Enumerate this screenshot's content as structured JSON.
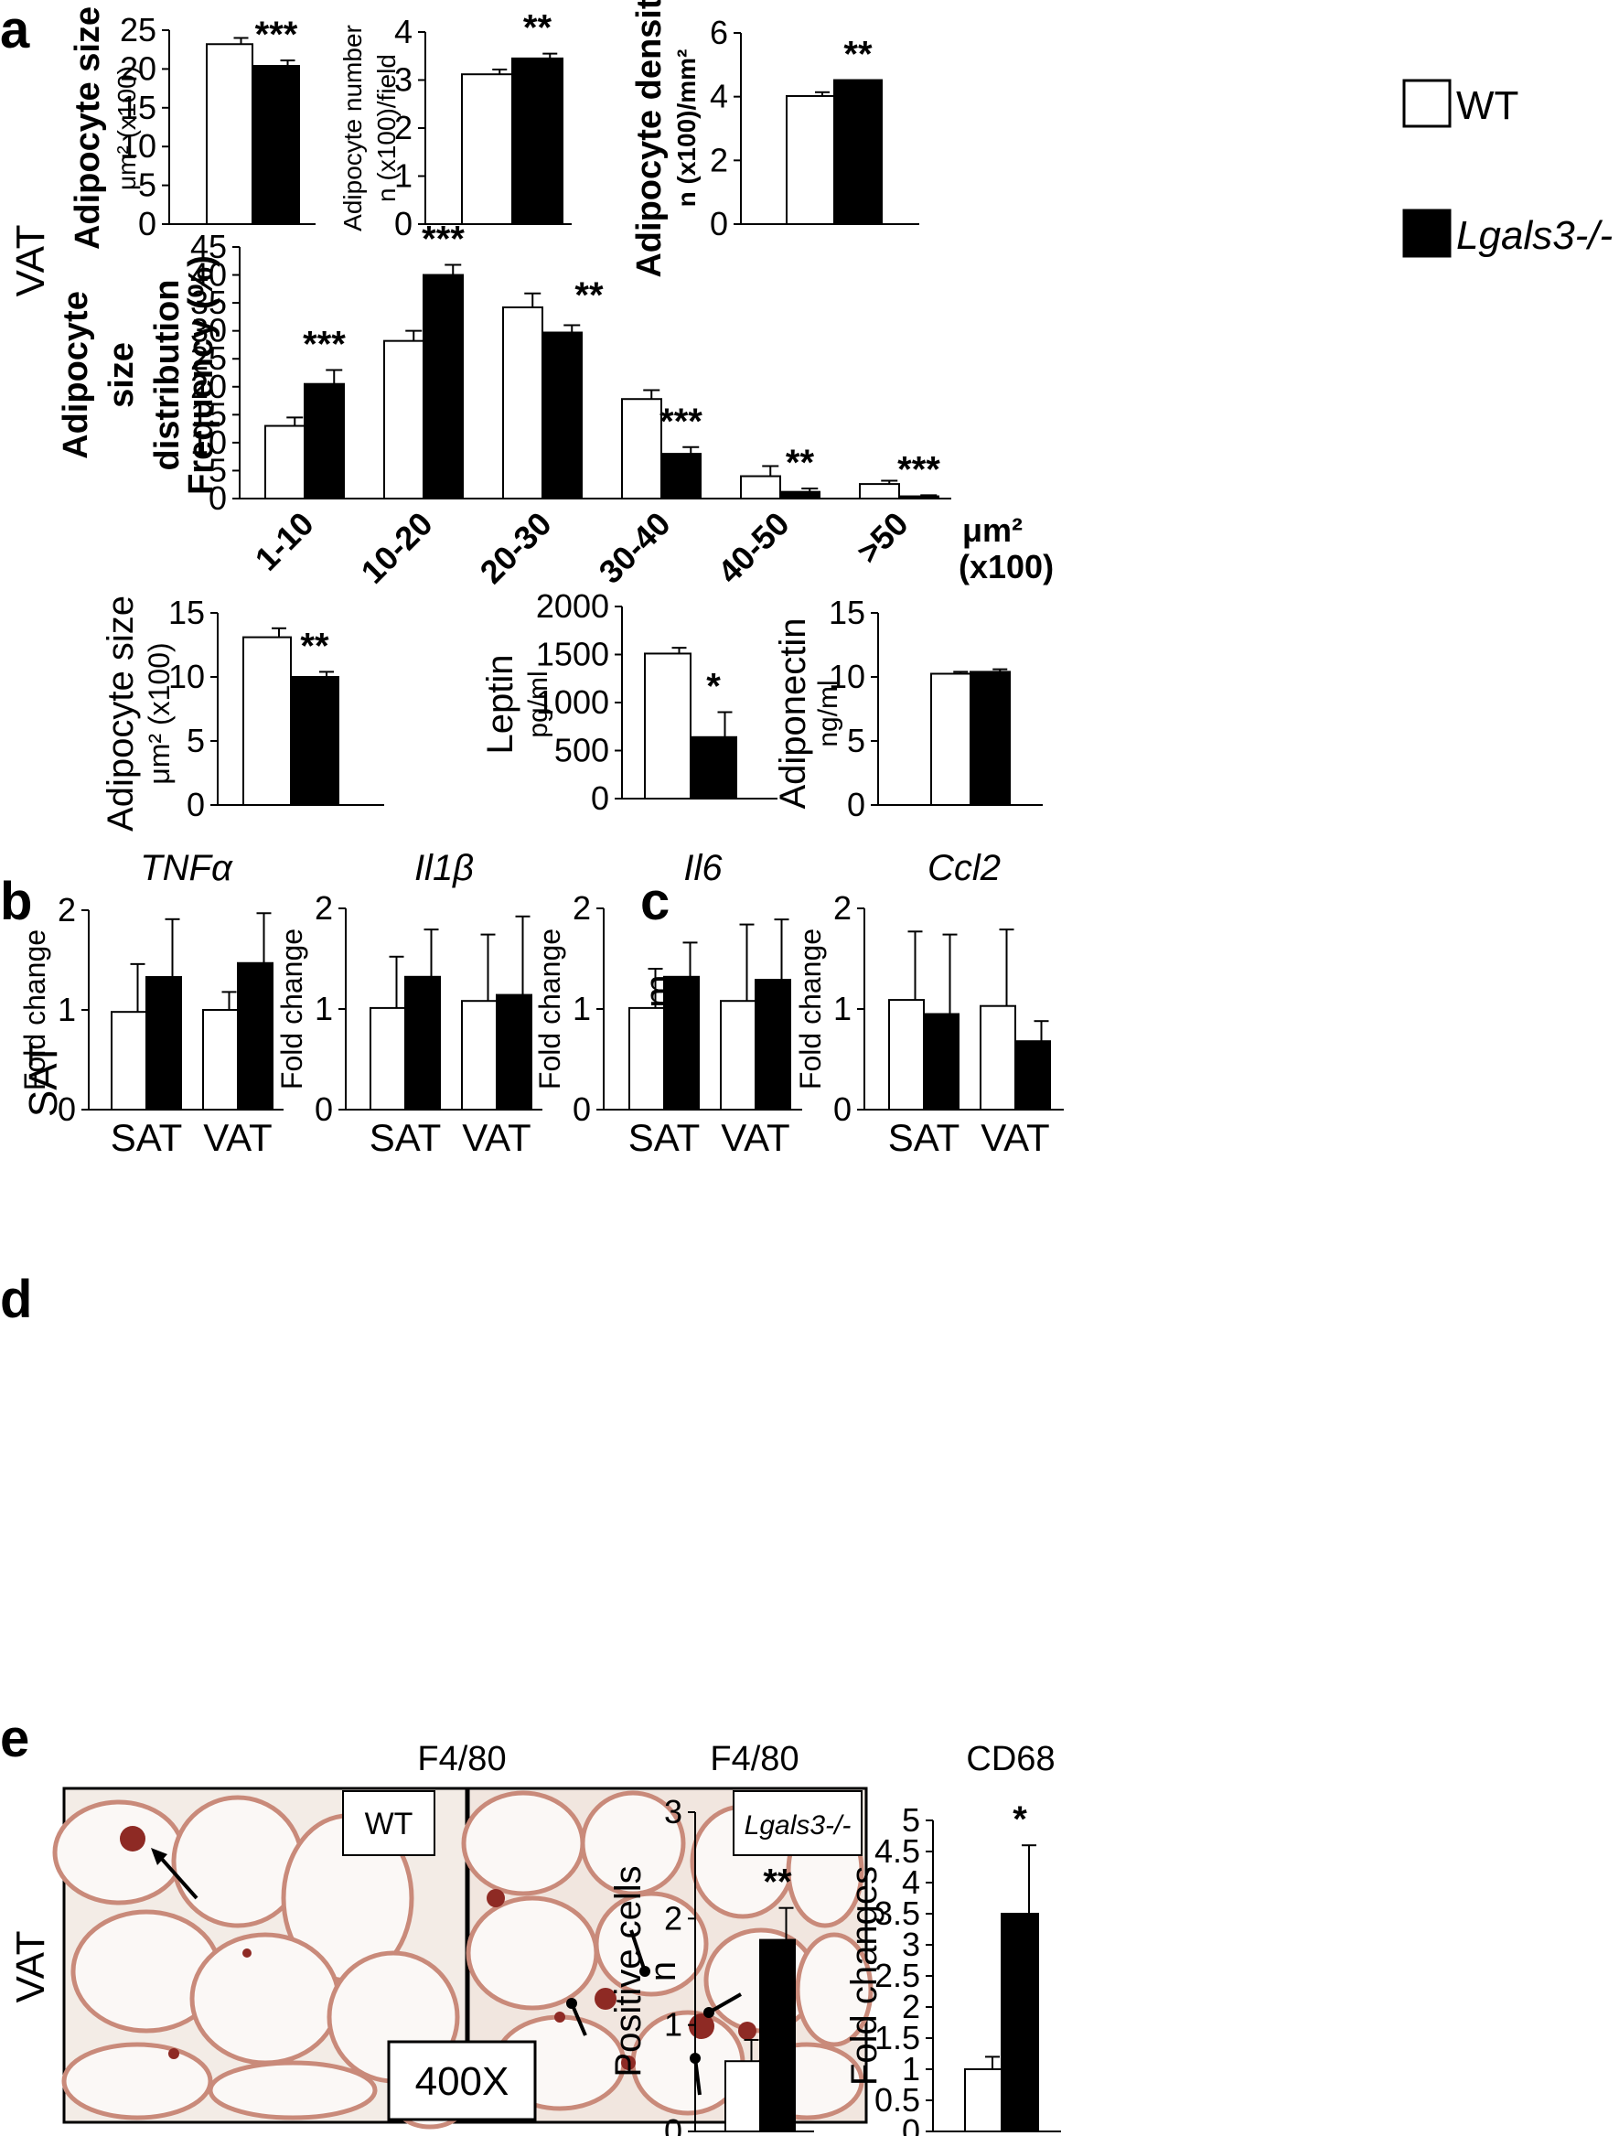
{
  "panels": {
    "a": "a",
    "b": "b",
    "c": "c",
    "d": "d",
    "e": "e"
  },
  "side_labels": {
    "a": "VAT",
    "b": "SAT",
    "c": "Serum",
    "e": "VAT"
  },
  "legend": {
    "wt": "WT",
    "ko": "Lgals3-/-",
    "wt_color": "#ffffff",
    "ko_color": "#000000"
  },
  "micrograph": {
    "title": "F4/80",
    "wt_label": "WT",
    "ko_label": "Lgals3-/-",
    "mag": "400X"
  },
  "chart_data": [
    {
      "id": "a_size",
      "type": "bar",
      "title": "",
      "ylabel": "Adipocyte size",
      "ysub": "μm² (x100)",
      "ylim": [
        0,
        25
      ],
      "yticks": [
        0,
        5,
        10,
        15,
        20,
        25
      ],
      "series": [
        {
          "name": "WT",
          "values": [
            23.2
          ],
          "err": [
            0.8
          ]
        },
        {
          "name": "Lgals3-/-",
          "values": [
            20.4
          ],
          "err": [
            0.7
          ]
        }
      ],
      "stars": "***"
    },
    {
      "id": "a_number",
      "type": "bar",
      "ylabel": "Adipocyte number",
      "ysub": "n (x100)/field",
      "ylim": [
        0,
        4
      ],
      "yticks": [
        0,
        1,
        2,
        3,
        4
      ],
      "series": [
        {
          "name": "WT",
          "values": [
            3.12
          ],
          "err": [
            0.1
          ]
        },
        {
          "name": "Lgals3-/-",
          "values": [
            3.45
          ],
          "err": [
            0.1
          ]
        }
      ],
      "stars": "**"
    },
    {
      "id": "a_density",
      "type": "bar",
      "ylabel": "Adipocyte density",
      "ysub": "n (x100)/mm²",
      "ylim": [
        0,
        6
      ],
      "yticks": [
        0,
        2,
        4,
        6
      ],
      "series": [
        {
          "name": "WT",
          "values": [
            4.02
          ],
          "err": [
            0.12
          ]
        },
        {
          "name": "Lgals3-/-",
          "values": [
            4.52
          ],
          "err": [
            0
          ]
        }
      ],
      "stars": "**"
    },
    {
      "id": "a_dist",
      "type": "bar",
      "ylabel1": "Adipocyte",
      "ylabel2": "size",
      "ylabel3": "distribution",
      "ysub": "Frequency  (%)",
      "ylim": [
        0,
        45
      ],
      "yticks": [
        0,
        5,
        10,
        15,
        20,
        25,
        30,
        35,
        40,
        45
      ],
      "categories": [
        "1-10",
        "10-20",
        "20-30",
        "30-40",
        "40-50",
        ">50"
      ],
      "xunit1": "μm²",
      "xunit2": "(x100)",
      "series": [
        {
          "name": "WT",
          "values": [
            13,
            28.2,
            34.2,
            17.8,
            4,
            2.6
          ],
          "err": [
            1.5,
            1.8,
            2.5,
            1.6,
            1.8,
            0.6
          ]
        },
        {
          "name": "Lgals3-/-",
          "values": [
            20.5,
            40,
            29.7,
            8,
            1.2,
            0.4
          ],
          "err": [
            2.5,
            1.8,
            1.3,
            1.2,
            0.6,
            0.2
          ]
        }
      ],
      "stars": [
        "***",
        "***",
        "**",
        "***",
        "**",
        "***"
      ]
    },
    {
      "id": "b_size",
      "type": "bar",
      "ylabel": "Adipocyte size",
      "ysub": "μm² (x100)",
      "ylim": [
        0,
        15
      ],
      "yticks": [
        0,
        5,
        10,
        15
      ],
      "series": [
        {
          "name": "WT",
          "values": [
            13.1
          ],
          "err": [
            0.7
          ]
        },
        {
          "name": "Lgals3-/-",
          "values": [
            10
          ],
          "err": [
            0.4
          ]
        }
      ],
      "stars": "**"
    },
    {
      "id": "c_leptin",
      "type": "bar",
      "ylabel": "Leptin",
      "ysub": "pg/ml",
      "ylim": [
        0,
        2000
      ],
      "yticks": [
        0,
        500,
        1000,
        1500,
        2000
      ],
      "series": [
        {
          "name": "WT",
          "values": [
            1510
          ],
          "err": [
            60
          ]
        },
        {
          "name": "Lgals3-/-",
          "values": [
            640
          ],
          "err": [
            260
          ]
        }
      ],
      "stars": "*"
    },
    {
      "id": "c_adipo",
      "type": "bar",
      "ylabel": "Adiponectin",
      "ysub": "ng/ml",
      "ylim": [
        0,
        15
      ],
      "yticks": [
        0,
        5,
        10,
        15
      ],
      "series": [
        {
          "name": "WT",
          "values": [
            10.25
          ],
          "err": [
            0.15
          ]
        },
        {
          "name": "Lgals3-/-",
          "values": [
            10.4
          ],
          "err": [
            0.2
          ]
        }
      ],
      "stars": ""
    },
    {
      "id": "d_tnf",
      "type": "bar",
      "title": "TNFα",
      "ylabel": "Fold change",
      "ylim": [
        0,
        2
      ],
      "yticks": [
        0,
        1,
        2
      ],
      "categories": [
        "SAT",
        "VAT"
      ],
      "series": [
        {
          "name": "WT",
          "values": [
            0.98,
            1.0
          ],
          "err": [
            0.48,
            0.18
          ]
        },
        {
          "name": "Lgals3-/-",
          "values": [
            1.33,
            1.47
          ],
          "err": [
            0.58,
            0.5
          ]
        }
      ]
    },
    {
      "id": "d_il1b",
      "type": "bar",
      "title": "Il1β",
      "ylabel": "Fold change",
      "ylim": [
        0,
        2
      ],
      "yticks": [
        0,
        1,
        2
      ],
      "categories": [
        "SAT",
        "VAT"
      ],
      "series": [
        {
          "name": "WT",
          "values": [
            1.01,
            1.08
          ],
          "err": [
            0.51,
            0.66
          ]
        },
        {
          "name": "Lgals3-/-",
          "values": [
            1.32,
            1.14
          ],
          "err": [
            0.47,
            0.78
          ]
        }
      ]
    },
    {
      "id": "d_il6",
      "type": "bar",
      "title": "Il6",
      "ylabel": "Fold change",
      "ylim": [
        0,
        2
      ],
      "yticks": [
        0,
        1,
        2
      ],
      "categories": [
        "SAT",
        "VAT"
      ],
      "series": [
        {
          "name": "WT",
          "values": [
            1.01,
            1.08
          ],
          "err": [
            0.39,
            0.76
          ]
        },
        {
          "name": "Lgals3-/-",
          "values": [
            1.32,
            1.29
          ],
          "err": [
            0.34,
            0.6
          ]
        }
      ]
    },
    {
      "id": "d_ccl2",
      "type": "bar",
      "title": "Ccl2",
      "ylabel": "Fold change",
      "ylim": [
        0,
        2
      ],
      "yticks": [
        0,
        1,
        2
      ],
      "categories": [
        "SAT",
        "VAT"
      ],
      "series": [
        {
          "name": "WT",
          "values": [
            1.09,
            1.03
          ],
          "err": [
            0.68,
            0.76
          ]
        },
        {
          "name": "Lgals3-/-",
          "values": [
            0.95,
            0.68
          ],
          "err": [
            0.79,
            0.2
          ]
        }
      ]
    },
    {
      "id": "e_f480",
      "type": "bar",
      "title": "F4/80",
      "ylabel": "Positive cells",
      "ysub": "n",
      "ylim": [
        0,
        3
      ],
      "yticks": [
        0,
        1,
        2,
        3
      ],
      "series": [
        {
          "name": "WT",
          "values": [
            0.66
          ],
          "err": [
            0.2
          ]
        },
        {
          "name": "Lgals3-/-",
          "values": [
            1.8
          ],
          "err": [
            0.3
          ]
        }
      ],
      "stars": "**"
    },
    {
      "id": "e_cd68",
      "type": "bar",
      "title": "CD68",
      "ylabel": "Fold changes",
      "ylim": [
        0,
        5
      ],
      "yticks": [
        0,
        0.5,
        1,
        1.5,
        2,
        2.5,
        3,
        3.5,
        4,
        4.5,
        5
      ],
      "series": [
        {
          "name": "WT",
          "values": [
            1.0
          ],
          "err": [
            0.2
          ]
        },
        {
          "name": "Lgals3-/-",
          "values": [
            3.5
          ],
          "err": [
            1.1
          ]
        }
      ],
      "stars": "*"
    }
  ]
}
